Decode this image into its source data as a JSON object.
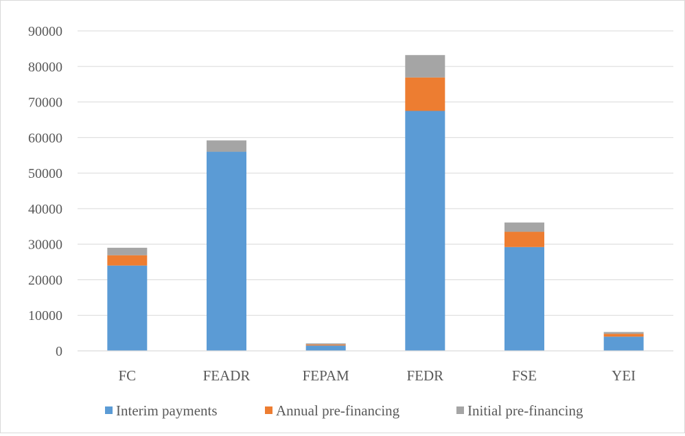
{
  "chart_data": {
    "type": "bar",
    "stacked": true,
    "categories": [
      "FC",
      "FEADR",
      "FEPAM",
      "FEDR",
      "FSE",
      "YEI"
    ],
    "series": [
      {
        "name": "Interim payments",
        "color": "#5b9bd5",
        "values": [
          24000,
          56000,
          1500,
          67500,
          29200,
          4000
        ]
      },
      {
        "name": "Annual pre-financing",
        "color": "#ed7d31",
        "values": [
          2900,
          0,
          300,
          9400,
          4300,
          800
        ]
      },
      {
        "name": "Initial pre-financing",
        "color": "#a5a5a5",
        "values": [
          2100,
          3200,
          300,
          6300,
          2600,
          500
        ]
      }
    ],
    "y_ticks": [
      "0",
      "10000",
      "20000",
      "30000",
      "40000",
      "50000",
      "60000",
      "70000",
      "80000",
      "90000"
    ],
    "ylim": [
      0,
      90000
    ],
    "grid": true,
    "legend_position": "bottom",
    "title": "",
    "xlabel": "",
    "ylabel": ""
  }
}
